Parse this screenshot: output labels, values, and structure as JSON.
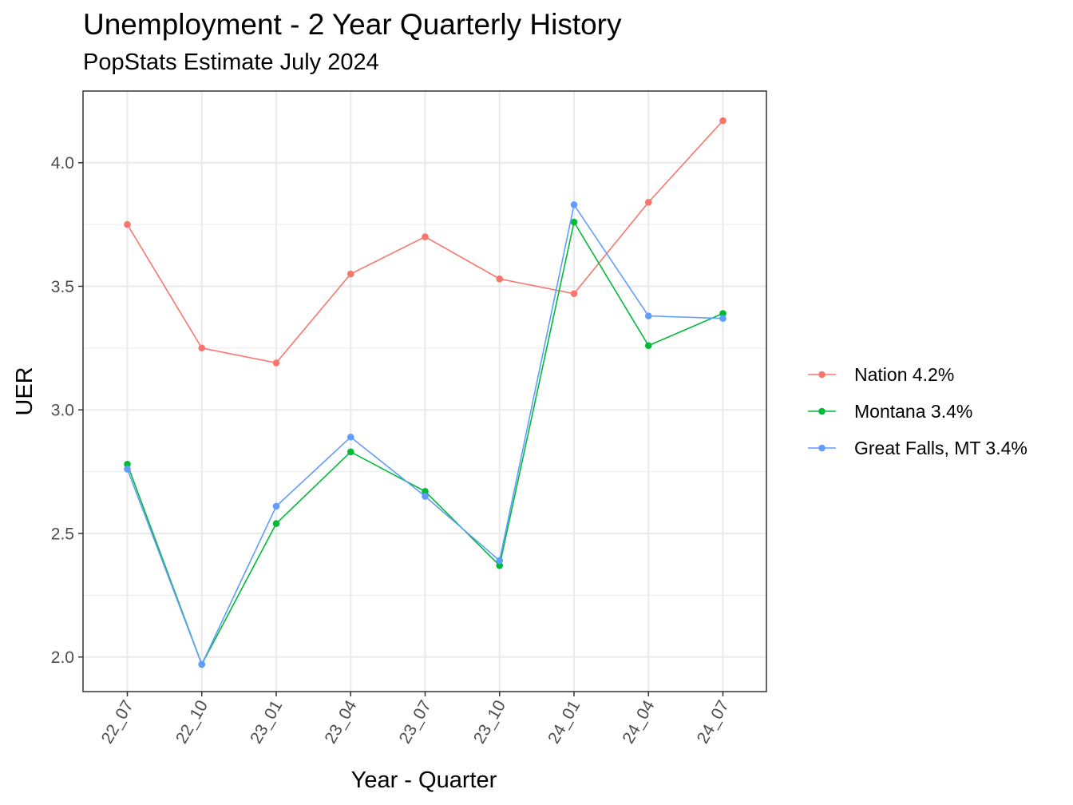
{
  "chart_data": {
    "type": "line",
    "title": "Unemployment - 2 Year Quarterly History",
    "subtitle": "PopStats Estimate July 2024",
    "xlabel": "Year - Quarter",
    "ylabel": "UER",
    "categories": [
      "22_07",
      "22_10",
      "23_01",
      "23_04",
      "23_07",
      "23_10",
      "24_01",
      "24_04",
      "24_07"
    ],
    "ylim": [
      1.86,
      4.29
    ],
    "yticks": [
      2.0,
      2.5,
      3.0,
      3.5,
      4.0
    ],
    "ytick_labels": [
      "2.0",
      "2.5",
      "3.0",
      "3.5",
      "4.0"
    ],
    "grid": true,
    "legend_position": "right",
    "series": [
      {
        "name": "Nation 4.2%",
        "color": "#F8766D",
        "values": [
          3.75,
          3.25,
          3.19,
          3.55,
          3.7,
          3.53,
          3.47,
          3.84,
          4.17
        ]
      },
      {
        "name": "Montana 3.4%",
        "color": "#00BA38",
        "values": [
          2.78,
          1.97,
          2.54,
          2.83,
          2.67,
          2.37,
          3.76,
          3.26,
          3.39
        ]
      },
      {
        "name": "Great Falls, MT 3.4%",
        "color": "#619CFF",
        "values": [
          2.76,
          1.97,
          2.61,
          2.89,
          2.65,
          2.39,
          3.83,
          3.38,
          3.37
        ]
      }
    ]
  }
}
